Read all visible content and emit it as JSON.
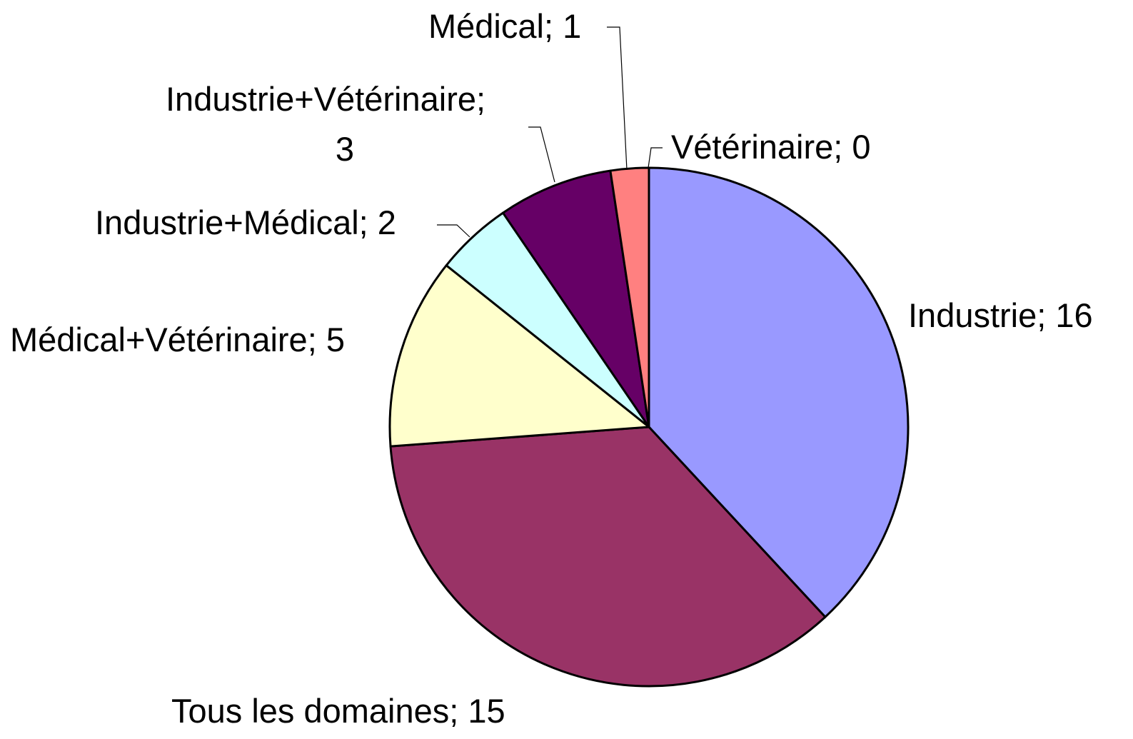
{
  "chart_data": {
    "type": "pie",
    "categories": [
      "Industrie",
      "Tous les domaines",
      "Médical+Vétérinaire",
      "Industrie+Médical",
      "Industrie+Vétérinaire",
      "Médical",
      "Vétérinaire"
    ],
    "values": [
      16,
      15,
      5,
      2,
      3,
      1,
      0
    ],
    "colors": [
      "#9999ff",
      "#993366",
      "#ffffcc",
      "#ccffff",
      "#660066",
      "#ff8080",
      "#0066cc"
    ],
    "label_separator": "; "
  }
}
